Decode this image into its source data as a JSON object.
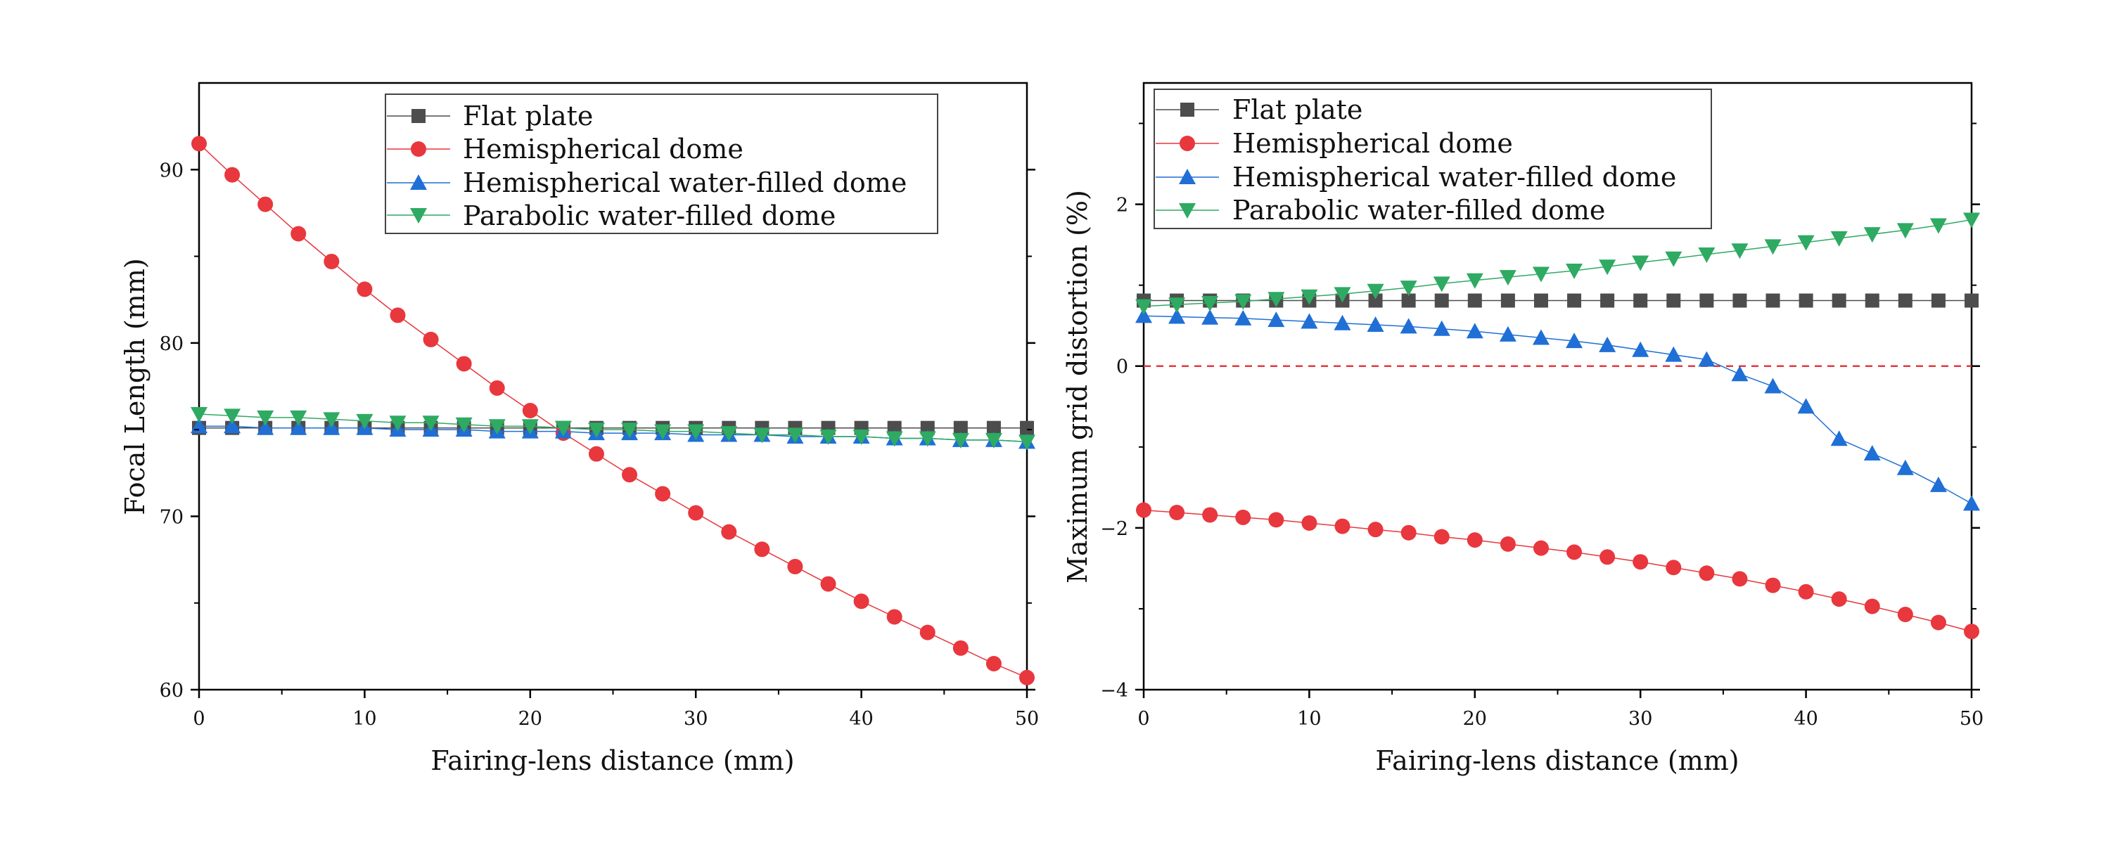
{
  "colors": {
    "flat_plate": "#4d4d4d",
    "hemispherical_dome": "#e8373d",
    "hemispherical_water_filled_dome": "#1f6fd6",
    "parabolic_water_filled_dome": "#2eaa62",
    "zero_reference_line": "#e8373d",
    "axis": "#000000"
  },
  "chart_data": [
    {
      "type": "line",
      "xlabel": "Fairing-lens distance (mm)",
      "ylabel": "Focal Length (mm)",
      "xlim": [
        0,
        50
      ],
      "ylim": [
        60,
        95
      ],
      "xticks": [
        0,
        10,
        20,
        30,
        40,
        50
      ],
      "yticks": [
        60,
        70,
        80,
        90
      ],
      "xtick_labels": [
        "0",
        "10",
        "20",
        "30",
        "40",
        "50"
      ],
      "ytick_labels": [
        "60",
        "70",
        "80",
        "90"
      ],
      "legend_position": "top-center",
      "grid": false,
      "x": [
        0,
        2,
        4,
        6,
        8,
        10,
        12,
        14,
        16,
        18,
        20,
        22,
        24,
        26,
        28,
        30,
        32,
        34,
        36,
        38,
        40,
        42,
        44,
        46,
        48,
        50
      ],
      "series": [
        {
          "name": "Flat plate",
          "marker": "square",
          "color": "#4d4d4d",
          "values": [
            75.1,
            75.1,
            75.1,
            75.1,
            75.1,
            75.1,
            75.1,
            75.1,
            75.1,
            75.1,
            75.1,
            75.1,
            75.1,
            75.1,
            75.1,
            75.1,
            75.1,
            75.1,
            75.1,
            75.1,
            75.1,
            75.1,
            75.1,
            75.1,
            75.1,
            75.1
          ]
        },
        {
          "name": "Hemispherical dome",
          "marker": "circle",
          "color": "#e8373d",
          "values": [
            91.5,
            89.7,
            88.0,
            86.3,
            84.7,
            83.1,
            81.6,
            80.2,
            78.8,
            77.4,
            76.1,
            74.8,
            73.6,
            72.4,
            71.3,
            70.2,
            69.1,
            68.1,
            67.1,
            66.1,
            65.1,
            64.2,
            63.3,
            62.4,
            61.5,
            60.7
          ]
        },
        {
          "name": "Hemispherical water-filled dome",
          "marker": "triangle-up",
          "color": "#1f6fd6",
          "values": [
            75.2,
            75.2,
            75.1,
            75.1,
            75.1,
            75.1,
            75.0,
            75.0,
            75.0,
            74.9,
            74.9,
            74.9,
            74.8,
            74.8,
            74.8,
            74.7,
            74.7,
            74.7,
            74.6,
            74.6,
            74.6,
            74.5,
            74.5,
            74.4,
            74.4,
            74.3
          ]
        },
        {
          "name": "Parabolic water-filled dome",
          "marker": "triangle-down",
          "color": "#2eaa62",
          "values": [
            75.9,
            75.8,
            75.7,
            75.7,
            75.6,
            75.5,
            75.4,
            75.4,
            75.3,
            75.2,
            75.2,
            75.1,
            75.0,
            75.0,
            74.9,
            74.9,
            74.8,
            74.7,
            74.7,
            74.6,
            74.6,
            74.5,
            74.5,
            74.4,
            74.4,
            74.3
          ]
        }
      ]
    },
    {
      "type": "line",
      "xlabel": "Fairing-lens distance (mm)",
      "ylabel": "Maximum grid distortion (%)",
      "xlim": [
        0,
        50
      ],
      "ylim": [
        -4,
        3.5
      ],
      "xticks": [
        0,
        10,
        20,
        30,
        40,
        50
      ],
      "yticks": [
        -4,
        -2,
        0,
        2
      ],
      "xtick_labels": [
        "0",
        "10",
        "20",
        "30",
        "40",
        "50"
      ],
      "ytick_labels": [
        "−4",
        "−2",
        "0",
        "2"
      ],
      "legend_position": "top-left",
      "grid": false,
      "reference_line_y": 0,
      "x": [
        0,
        2,
        4,
        6,
        8,
        10,
        12,
        14,
        16,
        18,
        20,
        22,
        24,
        26,
        28,
        30,
        32,
        34,
        36,
        38,
        40,
        42,
        44,
        46,
        48,
        50
      ],
      "series": [
        {
          "name": "Flat plate",
          "marker": "square",
          "color": "#4d4d4d",
          "values": [
            0.81,
            0.81,
            0.81,
            0.81,
            0.81,
            0.81,
            0.81,
            0.81,
            0.81,
            0.81,
            0.81,
            0.81,
            0.81,
            0.81,
            0.81,
            0.81,
            0.81,
            0.81,
            0.81,
            0.81,
            0.81,
            0.81,
            0.81,
            0.81,
            0.81,
            0.81
          ]
        },
        {
          "name": "Hemispherical dome",
          "marker": "circle",
          "color": "#e8373d",
          "values": [
            -1.78,
            -1.81,
            -1.84,
            -1.87,
            -1.9,
            -1.94,
            -1.98,
            -2.02,
            -2.06,
            -2.11,
            -2.15,
            -2.2,
            -2.25,
            -2.3,
            -2.36,
            -2.42,
            -2.49,
            -2.56,
            -2.63,
            -2.71,
            -2.79,
            -2.88,
            -2.97,
            -3.07,
            -3.17,
            -3.28
          ]
        },
        {
          "name": "Hemispherical water-filled dome",
          "marker": "triangle-up",
          "color": "#1f6fd6",
          "values": [
            0.62,
            0.61,
            0.6,
            0.59,
            0.57,
            0.55,
            0.53,
            0.51,
            0.49,
            0.46,
            0.43,
            0.39,
            0.35,
            0.31,
            0.26,
            0.2,
            0.14,
            0.08,
            -0.1,
            -0.25,
            -0.5,
            -0.9,
            -1.08,
            -1.26,
            -1.47,
            -1.7
          ]
        },
        {
          "name": "Parabolic water-filled dome",
          "marker": "triangle-down",
          "color": "#2eaa62",
          "values": [
            0.74,
            0.76,
            0.78,
            0.8,
            0.83,
            0.86,
            0.89,
            0.93,
            0.97,
            1.02,
            1.06,
            1.1,
            1.14,
            1.18,
            1.23,
            1.28,
            1.33,
            1.38,
            1.43,
            1.48,
            1.53,
            1.58,
            1.63,
            1.68,
            1.74,
            1.81
          ]
        }
      ]
    }
  ]
}
